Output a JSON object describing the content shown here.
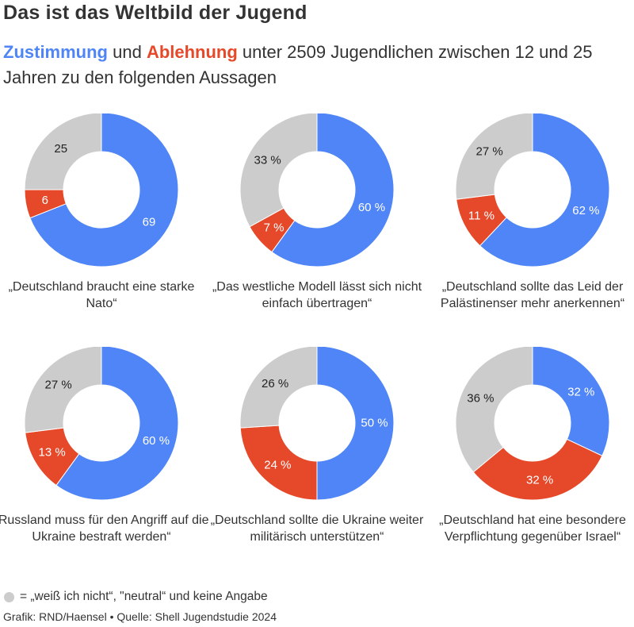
{
  "header": {
    "title": "Das ist das Weltbild der Jugend",
    "subtitle_agree": "Zustimmung",
    "subtitle_and": " und ",
    "subtitle_disagree": "Ablehnung",
    "subtitle_rest": " unter 2509 Jugendlichen zwischen 12 und 25 Jahren zu den folgenden Aussagen"
  },
  "colors": {
    "agree": "#4f85f6",
    "disagree": "#e5492a",
    "neutral": "#cccccc",
    "text": "#333333"
  },
  "chart_data": [
    {
      "type": "pie",
      "statement": "„Deutschland braucht eine starke Nato“",
      "slices": [
        {
          "category": "Zustimmung",
          "value": 69,
          "label": "69"
        },
        {
          "category": "Ablehnung",
          "value": 6,
          "label": "6"
        },
        {
          "category": "neutral",
          "value": 25,
          "label": "25"
        }
      ]
    },
    {
      "type": "pie",
      "statement": "„Das westliche Modell lässt sich nicht einfach übertragen“",
      "slices": [
        {
          "category": "Zustimmung",
          "value": 60,
          "label": "60 %"
        },
        {
          "category": "Ablehnung",
          "value": 7,
          "label": "7 %"
        },
        {
          "category": "neutral",
          "value": 33,
          "label": "33 %"
        }
      ]
    },
    {
      "type": "pie",
      "statement": "„Deutschland sollte das Leid der Palästinenser mehr anerkennen“",
      "slices": [
        {
          "category": "Zustimmung",
          "value": 62,
          "label": "62 %"
        },
        {
          "category": "Ablehnung",
          "value": 11,
          "label": "11 %"
        },
        {
          "category": "neutral",
          "value": 27,
          "label": "27 %"
        }
      ]
    },
    {
      "type": "pie",
      "statement": "„Russland muss für den Angriff auf die Ukraine bestraft werden“",
      "slices": [
        {
          "category": "Zustimmung",
          "value": 60,
          "label": "60 %"
        },
        {
          "category": "Ablehnung",
          "value": 13,
          "label": "13 %"
        },
        {
          "category": "neutral",
          "value": 27,
          "label": "27 %"
        }
      ]
    },
    {
      "type": "pie",
      "statement": "„Deutschland sollte die Ukraine weiter militärisch unterstützen“",
      "slices": [
        {
          "category": "Zustimmung",
          "value": 50,
          "label": "50 %"
        },
        {
          "category": "Ablehnung",
          "value": 24,
          "label": "24 %"
        },
        {
          "category": "neutral",
          "value": 26,
          "label": "26 %"
        }
      ]
    },
    {
      "type": "pie",
      "statement": "„Deutschland hat eine besondere Verpflichtung gegenüber Israel“",
      "slices": [
        {
          "category": "Zustimmung",
          "value": 32,
          "label": "32 %"
        },
        {
          "category": "Ablehnung",
          "value": 32,
          "label": "32 %"
        },
        {
          "category": "neutral",
          "value": 36,
          "label": "36 %"
        }
      ]
    }
  ],
  "legend": {
    "text": "= „weiß ich nicht“, \"neutral“ und keine Angabe"
  },
  "footer": {
    "source": "Grafik: RND/Haensel • Quelle: Shell Jugendstudie 2024"
  }
}
